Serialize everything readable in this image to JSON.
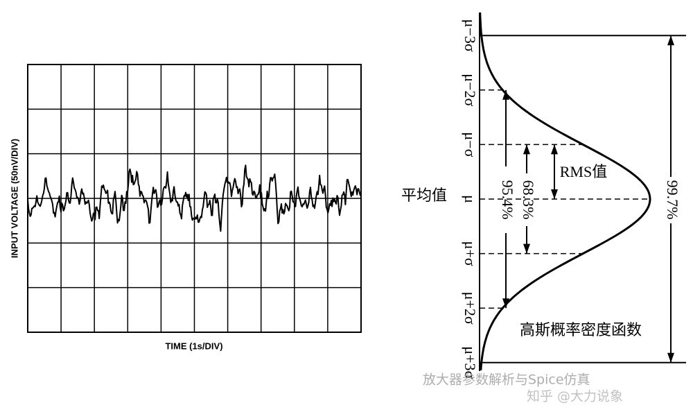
{
  "noise_plot": {
    "y_label": "INPUT VOLTAGE (50nV/DIV)",
    "x_label": "TIME (1s/DIV)"
  },
  "gaussian": {
    "levels": [
      "μ−3σ",
      "μ−2σ",
      "μ−σ",
      "μ",
      "μ+σ",
      "μ+2σ",
      "μ+3σ"
    ],
    "mean_label": "平均值",
    "rms_label": "RMS值",
    "span_68": "68.3%",
    "span_95": "95.4%",
    "span_99": "99.7%",
    "caption": "高斯概率密度函数"
  },
  "watermark": {
    "source": "放大器参数解析与Spice仿真",
    "site": "知乎 @大力说象"
  }
}
